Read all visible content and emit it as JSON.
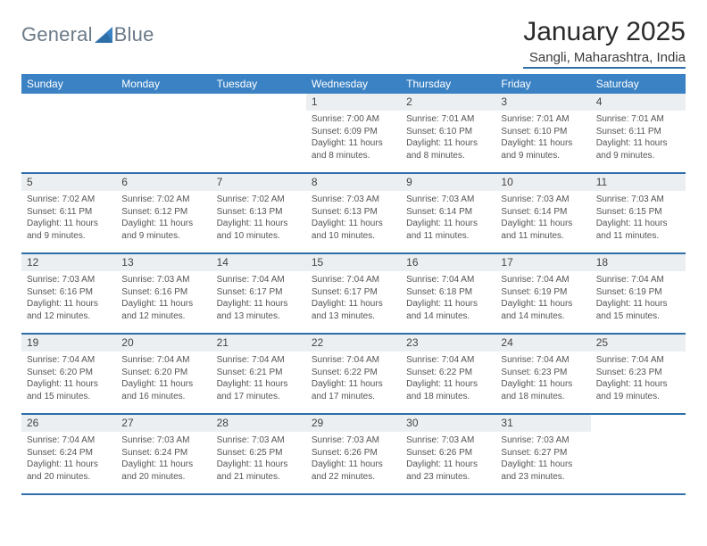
{
  "brand": {
    "name": "General",
    "suffix": "Blue",
    "accent": "#3b82c4",
    "logo_gray": "#6b7a88"
  },
  "title": "January 2025",
  "location": "Sangli, Maharashtra, India",
  "colors": {
    "accent": "#3b82c4",
    "header_divider": "#2f6fa8",
    "row_divider": "#2f6fa8",
    "daynum_bg": "#eceff1",
    "body_text": "#3a3a3a",
    "muted_text": "#555555",
    "page_bg": "#ffffff"
  },
  "typography": {
    "title_fontsize": 30,
    "location_fontsize": 15,
    "dow_fontsize": 12,
    "daynum_fontsize": 12,
    "body_fontsize": 10
  },
  "days_of_week": [
    "Sunday",
    "Monday",
    "Tuesday",
    "Wednesday",
    "Thursday",
    "Friday",
    "Saturday"
  ],
  "weeks": [
    [
      {
        "num": "",
        "sunrise": "",
        "sunset": "",
        "daylight": ""
      },
      {
        "num": "",
        "sunrise": "",
        "sunset": "",
        "daylight": ""
      },
      {
        "num": "",
        "sunrise": "",
        "sunset": "",
        "daylight": ""
      },
      {
        "num": "1",
        "sunrise": "7:00 AM",
        "sunset": "6:09 PM",
        "daylight": "11 hours and 8 minutes."
      },
      {
        "num": "2",
        "sunrise": "7:01 AM",
        "sunset": "6:10 PM",
        "daylight": "11 hours and 8 minutes."
      },
      {
        "num": "3",
        "sunrise": "7:01 AM",
        "sunset": "6:10 PM",
        "daylight": "11 hours and 9 minutes."
      },
      {
        "num": "4",
        "sunrise": "7:01 AM",
        "sunset": "6:11 PM",
        "daylight": "11 hours and 9 minutes."
      }
    ],
    [
      {
        "num": "5",
        "sunrise": "7:02 AM",
        "sunset": "6:11 PM",
        "daylight": "11 hours and 9 minutes."
      },
      {
        "num": "6",
        "sunrise": "7:02 AM",
        "sunset": "6:12 PM",
        "daylight": "11 hours and 9 minutes."
      },
      {
        "num": "7",
        "sunrise": "7:02 AM",
        "sunset": "6:13 PM",
        "daylight": "11 hours and 10 minutes."
      },
      {
        "num": "8",
        "sunrise": "7:03 AM",
        "sunset": "6:13 PM",
        "daylight": "11 hours and 10 minutes."
      },
      {
        "num": "9",
        "sunrise": "7:03 AM",
        "sunset": "6:14 PM",
        "daylight": "11 hours and 11 minutes."
      },
      {
        "num": "10",
        "sunrise": "7:03 AM",
        "sunset": "6:14 PM",
        "daylight": "11 hours and 11 minutes."
      },
      {
        "num": "11",
        "sunrise": "7:03 AM",
        "sunset": "6:15 PM",
        "daylight": "11 hours and 11 minutes."
      }
    ],
    [
      {
        "num": "12",
        "sunrise": "7:03 AM",
        "sunset": "6:16 PM",
        "daylight": "11 hours and 12 minutes."
      },
      {
        "num": "13",
        "sunrise": "7:03 AM",
        "sunset": "6:16 PM",
        "daylight": "11 hours and 12 minutes."
      },
      {
        "num": "14",
        "sunrise": "7:04 AM",
        "sunset": "6:17 PM",
        "daylight": "11 hours and 13 minutes."
      },
      {
        "num": "15",
        "sunrise": "7:04 AM",
        "sunset": "6:17 PM",
        "daylight": "11 hours and 13 minutes."
      },
      {
        "num": "16",
        "sunrise": "7:04 AM",
        "sunset": "6:18 PM",
        "daylight": "11 hours and 14 minutes."
      },
      {
        "num": "17",
        "sunrise": "7:04 AM",
        "sunset": "6:19 PM",
        "daylight": "11 hours and 14 minutes."
      },
      {
        "num": "18",
        "sunrise": "7:04 AM",
        "sunset": "6:19 PM",
        "daylight": "11 hours and 15 minutes."
      }
    ],
    [
      {
        "num": "19",
        "sunrise": "7:04 AM",
        "sunset": "6:20 PM",
        "daylight": "11 hours and 15 minutes."
      },
      {
        "num": "20",
        "sunrise": "7:04 AM",
        "sunset": "6:20 PM",
        "daylight": "11 hours and 16 minutes."
      },
      {
        "num": "21",
        "sunrise": "7:04 AM",
        "sunset": "6:21 PM",
        "daylight": "11 hours and 17 minutes."
      },
      {
        "num": "22",
        "sunrise": "7:04 AM",
        "sunset": "6:22 PM",
        "daylight": "11 hours and 17 minutes."
      },
      {
        "num": "23",
        "sunrise": "7:04 AM",
        "sunset": "6:22 PM",
        "daylight": "11 hours and 18 minutes."
      },
      {
        "num": "24",
        "sunrise": "7:04 AM",
        "sunset": "6:23 PM",
        "daylight": "11 hours and 18 minutes."
      },
      {
        "num": "25",
        "sunrise": "7:04 AM",
        "sunset": "6:23 PM",
        "daylight": "11 hours and 19 minutes."
      }
    ],
    [
      {
        "num": "26",
        "sunrise": "7:04 AM",
        "sunset": "6:24 PM",
        "daylight": "11 hours and 20 minutes."
      },
      {
        "num": "27",
        "sunrise": "7:03 AM",
        "sunset": "6:24 PM",
        "daylight": "11 hours and 20 minutes."
      },
      {
        "num": "28",
        "sunrise": "7:03 AM",
        "sunset": "6:25 PM",
        "daylight": "11 hours and 21 minutes."
      },
      {
        "num": "29",
        "sunrise": "7:03 AM",
        "sunset": "6:26 PM",
        "daylight": "11 hours and 22 minutes."
      },
      {
        "num": "30",
        "sunrise": "7:03 AM",
        "sunset": "6:26 PM",
        "daylight": "11 hours and 23 minutes."
      },
      {
        "num": "31",
        "sunrise": "7:03 AM",
        "sunset": "6:27 PM",
        "daylight": "11 hours and 23 minutes."
      },
      {
        "num": "",
        "sunrise": "",
        "sunset": "",
        "daylight": ""
      }
    ]
  ],
  "labels": {
    "sunrise": "Sunrise: ",
    "sunset": "Sunset: ",
    "daylight": "Daylight: "
  }
}
